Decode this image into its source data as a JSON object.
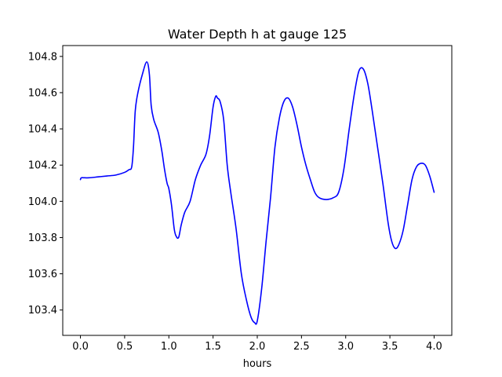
{
  "chart_data": {
    "type": "line",
    "title": "Water Depth h at gauge 125",
    "xlabel": "hours",
    "ylabel": "",
    "xlim": [
      -0.2,
      4.2
    ],
    "ylim": [
      103.26,
      104.86
    ],
    "xticks": [
      0.0,
      0.5,
      1.0,
      1.5,
      2.0,
      2.5,
      3.0,
      3.5,
      4.0
    ],
    "xtick_labels": [
      "0.0",
      "0.5",
      "1.0",
      "1.5",
      "2.0",
      "2.5",
      "3.0",
      "3.5",
      "4.0"
    ],
    "yticks": [
      103.4,
      103.6,
      103.8,
      104.0,
      104.2,
      104.4,
      104.6,
      104.8
    ],
    "ytick_labels": [
      "103.4",
      "103.6",
      "103.8",
      "104.0",
      "104.2",
      "104.4",
      "104.6",
      "104.8"
    ],
    "grid": false,
    "series": [
      {
        "color": "#0000ff",
        "x": [
          0.0,
          0.01,
          0.05,
          0.1,
          0.2,
          0.3,
          0.4,
          0.5,
          0.55,
          0.58,
          0.6,
          0.62,
          0.65,
          0.7,
          0.75,
          0.78,
          0.8,
          0.83,
          0.88,
          0.92,
          0.95,
          0.98,
          1.0,
          1.03,
          1.06,
          1.08,
          1.11,
          1.14,
          1.18,
          1.24,
          1.3,
          1.36,
          1.42,
          1.46,
          1.5,
          1.53,
          1.55,
          1.58,
          1.62,
          1.66,
          1.7,
          1.76,
          1.82,
          1.88,
          1.93,
          1.97,
          2.0,
          2.05,
          2.1,
          2.15,
          2.2,
          2.25,
          2.3,
          2.35,
          2.4,
          2.45,
          2.5,
          2.55,
          2.6,
          2.65,
          2.7,
          2.78,
          2.86,
          2.92,
          2.98,
          3.04,
          3.1,
          3.15,
          3.2,
          3.25,
          3.3,
          3.36,
          3.42,
          3.48,
          3.52,
          3.56,
          3.6,
          3.65,
          3.7,
          3.75,
          3.8,
          3.85,
          3.9,
          3.95,
          4.0
        ],
        "y": [
          104.12,
          104.13,
          104.13,
          104.13,
          104.135,
          104.14,
          104.145,
          104.16,
          104.175,
          104.19,
          104.3,
          104.5,
          104.6,
          104.7,
          104.77,
          104.7,
          104.53,
          104.45,
          104.38,
          104.28,
          104.18,
          104.1,
          104.07,
          103.98,
          103.85,
          103.81,
          103.8,
          103.87,
          103.94,
          104.0,
          104.12,
          104.2,
          104.26,
          104.36,
          104.52,
          104.58,
          104.57,
          104.55,
          104.45,
          104.2,
          104.05,
          103.85,
          103.6,
          103.45,
          103.36,
          103.33,
          103.34,
          103.52,
          103.78,
          104.02,
          104.3,
          104.46,
          104.55,
          104.57,
          104.52,
          104.42,
          104.3,
          104.2,
          104.12,
          104.05,
          104.02,
          104.01,
          104.02,
          104.05,
          104.18,
          104.4,
          104.6,
          104.72,
          104.73,
          104.65,
          104.5,
          104.3,
          104.1,
          103.88,
          103.78,
          103.74,
          103.76,
          103.84,
          103.98,
          104.12,
          104.19,
          104.21,
          104.2,
          104.14,
          104.05
        ]
      }
    ]
  }
}
